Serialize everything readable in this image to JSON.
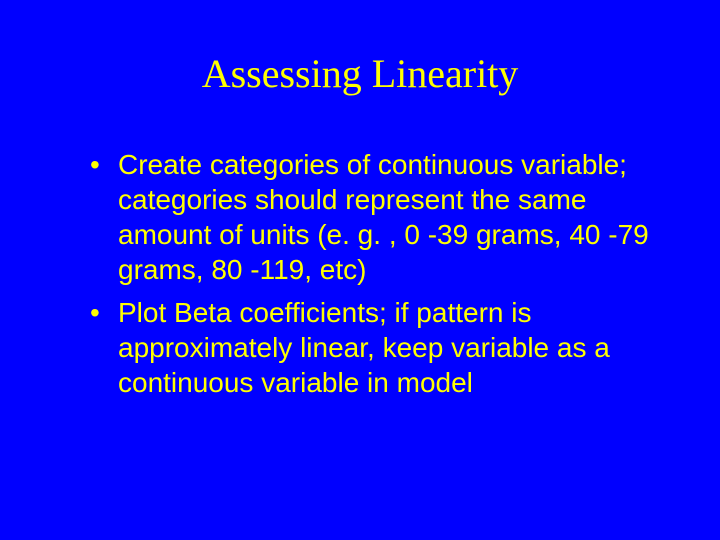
{
  "slide": {
    "background_color": "#0000ff",
    "text_color": "#ffff00",
    "title": "Assessing Linearity",
    "title_fontsize": 40,
    "title_font_family": "Times New Roman",
    "body_fontsize": 28,
    "body_font_family": "Arial",
    "bullets": [
      "Create categories of continuous variable; categories should represent the same amount of units (e. g. , 0 -39 grams, 40 -79 grams, 80 -119, etc)",
      "Plot Beta coefficients; if pattern is approximately linear, keep variable as a continuous variable in model"
    ]
  }
}
